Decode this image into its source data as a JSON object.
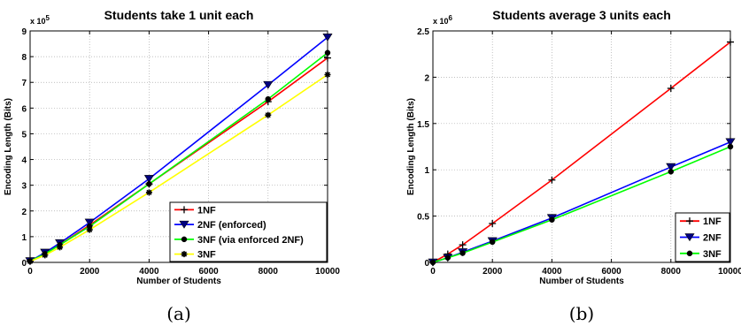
{
  "chart_data": [
    {
      "type": "line",
      "title": "Students take 1 unit each",
      "xlabel": "Number of Students",
      "ylabel": "Encoding Length (Bits)",
      "y_multiplier_label": "x 10",
      "y_multiplier_exponent": "5",
      "y_multiplier": 100000,
      "x": [
        0,
        500,
        1000,
        2000,
        4000,
        8000,
        10000
      ],
      "xlim": [
        0,
        10000
      ],
      "ylim": [
        0,
        9
      ],
      "xticks": [
        0,
        2000,
        4000,
        6000,
        8000,
        10000
      ],
      "yticks": [
        0,
        1,
        2,
        3,
        4,
        5,
        6,
        7,
        8,
        9
      ],
      "grid": true,
      "legend_position": "bottom-right",
      "caption": "(a)",
      "series": [
        {
          "name": "1NF",
          "color": "#ff0000",
          "marker": "plus",
          "values": [
            0.05,
            0.34,
            0.68,
            1.45,
            3.05,
            6.25,
            7.95
          ]
        },
        {
          "name": "2NF (enforced)",
          "color": "#0000ff",
          "marker": "triangle-down",
          "values": [
            0.05,
            0.38,
            0.75,
            1.55,
            3.25,
            6.9,
            8.75
          ]
        },
        {
          "name": "3NF (via enforced 2NF)",
          "color": "#00ff00",
          "marker": "dot",
          "values": [
            0.05,
            0.33,
            0.68,
            1.4,
            3.05,
            6.35,
            8.15
          ]
        },
        {
          "name": "3NF",
          "color": "#ffff00",
          "marker": "star",
          "values": [
            0.04,
            0.28,
            0.59,
            1.27,
            2.72,
            5.73,
            7.3
          ]
        }
      ]
    },
    {
      "type": "line",
      "title": "Students average 3 units each",
      "xlabel": "Number of Students",
      "ylabel": "Encoding Length (Bits)",
      "y_multiplier_label": "x 10",
      "y_multiplier_exponent": "6",
      "y_multiplier": 1000000,
      "x": [
        0,
        500,
        1000,
        2000,
        4000,
        8000,
        10000
      ],
      "xlim": [
        0,
        10000
      ],
      "ylim": [
        0,
        2.5
      ],
      "xticks": [
        0,
        2000,
        4000,
        6000,
        8000,
        10000
      ],
      "yticks": [
        0,
        0.5,
        1,
        1.5,
        2,
        2.5
      ],
      "grid": true,
      "legend_position": "bottom-right",
      "caption": "(b)",
      "series": [
        {
          "name": "1NF",
          "color": "#ff0000",
          "marker": "plus",
          "values": [
            0.0,
            0.09,
            0.19,
            0.42,
            0.89,
            1.88,
            2.38
          ]
        },
        {
          "name": "2NF",
          "color": "#0000ff",
          "marker": "triangle-down",
          "values": [
            0.0,
            0.05,
            0.11,
            0.23,
            0.48,
            1.03,
            1.3
          ]
        },
        {
          "name": "3NF",
          "color": "#00ff00",
          "marker": "dot",
          "values": [
            0.0,
            0.05,
            0.1,
            0.22,
            0.46,
            0.98,
            1.25
          ]
        }
      ]
    }
  ]
}
